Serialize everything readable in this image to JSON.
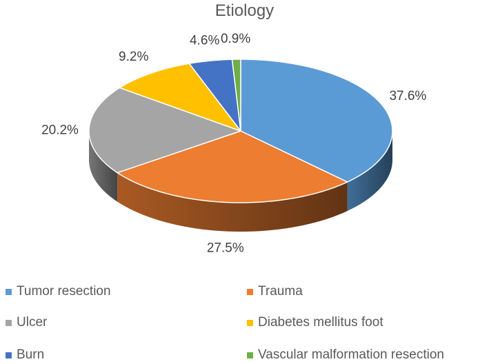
{
  "chart_data": {
    "type": "pie",
    "title": "Etiology",
    "categories": [
      "Tumor resection",
      "Trauma",
      "Ulcer",
      "Diabetes mellitus foot",
      "Burn",
      "Vascular malformation resection"
    ],
    "values": [
      37.6,
      27.5,
      20.2,
      9.2,
      4.6,
      0.9
    ],
    "labels": [
      "37.6%",
      "27.5%",
      "20.2%",
      "9.2%",
      "4.6%",
      "0.9%"
    ],
    "colors": [
      "#5b9bd5",
      "#ed7d31",
      "#a5a5a5",
      "#ffc000",
      "#4472c4",
      "#70ad47"
    ],
    "legend_position": "bottom",
    "style": "3d"
  }
}
